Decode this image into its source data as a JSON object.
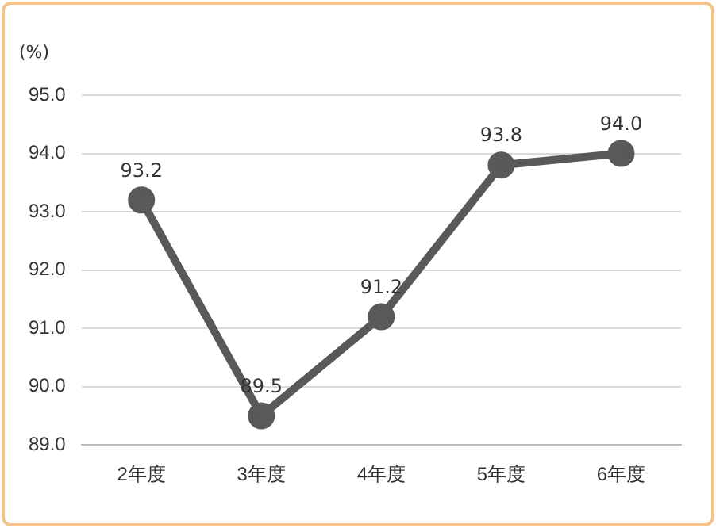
{
  "chart_data": {
    "type": "line",
    "ylabel": "(%)",
    "categories": [
      "2年度",
      "3年度",
      "4年度",
      "5年度",
      "6年度"
    ],
    "series": [
      {
        "color": "#595959",
        "values": [
          93.2,
          89.5,
          91.2,
          93.8,
          94.0
        ]
      }
    ],
    "ylim": [
      89,
      95
    ],
    "yticks": [
      {
        "value": 89,
        "label": "89.0"
      },
      {
        "value": 90,
        "label": "90.0"
      },
      {
        "value": 91,
        "label": "91.0"
      },
      {
        "value": 92,
        "label": "92.0"
      },
      {
        "value": 93,
        "label": "93.0"
      },
      {
        "value": 94,
        "label": "94.0"
      },
      {
        "value": 95,
        "label": "95.0"
      }
    ],
    "value_labels": [
      "93.2",
      "89.5",
      "91.2",
      "93.8",
      "94.0"
    ],
    "grid": "y",
    "legend": false,
    "marker": "circle",
    "line_style": "solid"
  }
}
